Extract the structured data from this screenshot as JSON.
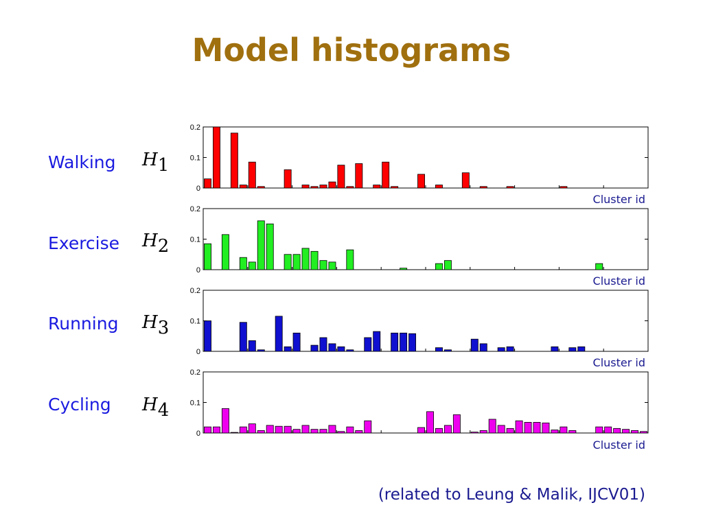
{
  "slide": {
    "title": "Model histograms",
    "footer": "(related to Leung & Malik, IJCV01)"
  },
  "chart_data": [
    {
      "type": "bar",
      "name": "Walking",
      "symbol": "H",
      "subscript": "1",
      "color": "#ff0000",
      "xlabel": "Cluster id",
      "ylabel": "",
      "ylim": [
        0,
        0.2
      ],
      "yticks": [
        "0",
        "0.1",
        "0.2"
      ],
      "values": [
        0.03,
        0.2,
        0,
        0.18,
        0.01,
        0.085,
        0.005,
        0,
        0,
        0.06,
        0,
        0.01,
        0.005,
        0.01,
        0.02,
        0.075,
        0.005,
        0.08,
        0,
        0.01,
        0.085,
        0.005,
        0,
        0,
        0.045,
        0,
        0.01,
        0,
        0,
        0.05,
        0,
        0.005,
        0,
        0,
        0.005,
        0,
        0,
        0,
        0,
        0,
        0.005,
        0,
        0,
        0,
        0,
        0,
        0,
        0,
        0,
        0
      ]
    },
    {
      "type": "bar",
      "name": "Exercise",
      "symbol": "H",
      "subscript": "2",
      "color": "#22ee22",
      "xlabel": "Cluster id",
      "ylabel": "",
      "ylim": [
        0,
        0.2
      ],
      "yticks": [
        "0",
        "0.1",
        "0.2"
      ],
      "values": [
        0.085,
        0,
        0.115,
        0,
        0.04,
        0.025,
        0.16,
        0.15,
        0,
        0.05,
        0.05,
        0.07,
        0.06,
        0.03,
        0.025,
        0,
        0.065,
        0,
        0,
        0,
        0,
        0,
        0.005,
        0,
        0,
        0,
        0.02,
        0.03,
        0,
        0,
        0,
        0,
        0,
        0,
        0,
        0,
        0,
        0,
        0,
        0,
        0,
        0,
        0,
        0,
        0.02,
        0,
        0,
        0,
        0,
        0
      ]
    },
    {
      "type": "bar",
      "name": "Running",
      "symbol": "H",
      "subscript": "3",
      "color": "#1010d0",
      "xlabel": "Cluster id",
      "ylabel": "",
      "ylim": [
        0,
        0.2
      ],
      "yticks": [
        "0",
        "0.1",
        "0.2"
      ],
      "values": [
        0.1,
        0,
        0,
        0,
        0.095,
        0.035,
        0.005,
        0,
        0.115,
        0.015,
        0.06,
        0,
        0.02,
        0.045,
        0.025,
        0.015,
        0.005,
        0,
        0.045,
        0.065,
        0,
        0.06,
        0.06,
        0.058,
        0,
        0,
        0.012,
        0.005,
        0,
        0,
        0.04,
        0.025,
        0,
        0.012,
        0.015,
        0,
        0,
        0,
        0,
        0.015,
        0,
        0.012,
        0.015,
        0,
        0,
        0,
        0,
        0,
        0,
        0
      ]
    },
    {
      "type": "bar",
      "name": "Cycling",
      "symbol": "H",
      "subscript": "4",
      "color": "#ee00ee",
      "xlabel": "Cluster id",
      "ylabel": "",
      "ylim": [
        0,
        0.2
      ],
      "yticks": [
        "0",
        "0.1",
        "0.2"
      ],
      "values": [
        0.02,
        0.02,
        0.08,
        0.002,
        0.02,
        0.03,
        0.008,
        0.025,
        0.022,
        0.022,
        0.012,
        0.025,
        0.012,
        0.012,
        0.025,
        0.005,
        0.02,
        0.008,
        0.04,
        0,
        0,
        0,
        0,
        0,
        0.018,
        0.07,
        0.015,
        0.025,
        0.06,
        0,
        0.003,
        0.008,
        0.045,
        0.025,
        0.015,
        0.04,
        0.035,
        0.035,
        0.033,
        0.01,
        0.02,
        0.008,
        0,
        0,
        0.02,
        0.02,
        0.015,
        0.012,
        0.008,
        0.005
      ]
    }
  ]
}
